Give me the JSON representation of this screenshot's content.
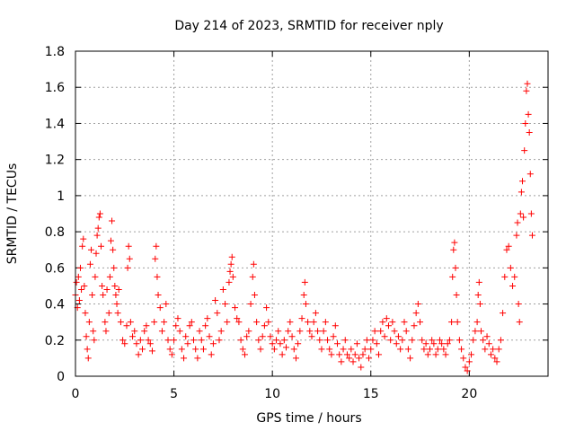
{
  "chart_data": {
    "type": "scatter",
    "title": "Day 214 of 2023, SRMTID for receiver nply",
    "xlabel": "GPS time / hours",
    "ylabel": "SRMTID / TECUs",
    "xlim": [
      0,
      24
    ],
    "ylim": [
      0,
      1.8
    ],
    "xticks": [
      0,
      5,
      10,
      15,
      20
    ],
    "xtick_labels": [
      "0",
      "5",
      "10",
      "15",
      "20"
    ],
    "yticks": [
      0,
      0.2,
      0.4,
      0.6,
      0.8,
      1,
      1.2,
      1.4,
      1.6,
      1.8
    ],
    "ytick_labels": [
      "0",
      "0.2",
      "0.4",
      "0.6",
      "0.8",
      "1",
      "1.2",
      "1.4",
      "1.6",
      "1.8"
    ],
    "grid": true,
    "marker": "+",
    "color": "#ff0000",
    "series": [
      {
        "name": "SRMTID",
        "points": [
          [
            0.0,
            0.45
          ],
          [
            0.05,
            0.52
          ],
          [
            0.1,
            0.38
          ],
          [
            0.15,
            0.55
          ],
          [
            0.2,
            0.42
          ],
          [
            0.25,
            0.6
          ],
          [
            0.3,
            0.48
          ],
          [
            0.35,
            0.72
          ],
          [
            0.4,
            0.76
          ],
          [
            0.45,
            0.5
          ],
          [
            0.5,
            0.35
          ],
          [
            0.55,
            0.22
          ],
          [
            0.6,
            0.15
          ],
          [
            0.65,
            0.1
          ],
          [
            0.7,
            0.3
          ],
          [
            0.75,
            0.62
          ],
          [
            0.8,
            0.7
          ],
          [
            0.85,
            0.45
          ],
          [
            0.9,
            0.25
          ],
          [
            0.95,
            0.2
          ],
          [
            1.0,
            0.55
          ],
          [
            1.05,
            0.68
          ],
          [
            1.1,
            0.78
          ],
          [
            1.15,
            0.82
          ],
          [
            1.2,
            0.88
          ],
          [
            1.25,
            0.9
          ],
          [
            1.3,
            0.72
          ],
          [
            1.35,
            0.5
          ],
          [
            1.4,
            0.45
          ],
          [
            1.5,
            0.3
          ],
          [
            1.55,
            0.25
          ],
          [
            1.6,
            0.48
          ],
          [
            1.7,
            0.35
          ],
          [
            1.75,
            0.55
          ],
          [
            1.8,
            0.75
          ],
          [
            1.85,
            0.86
          ],
          [
            1.9,
            0.7
          ],
          [
            1.95,
            0.6
          ],
          [
            2.0,
            0.5
          ],
          [
            2.05,
            0.45
          ],
          [
            2.1,
            0.4
          ],
          [
            2.15,
            0.35
          ],
          [
            2.2,
            0.48
          ],
          [
            2.3,
            0.3
          ],
          [
            2.4,
            0.2
          ],
          [
            2.5,
            0.18
          ],
          [
            2.6,
            0.28
          ],
          [
            2.65,
            0.6
          ],
          [
            2.7,
            0.72
          ],
          [
            2.75,
            0.65
          ],
          [
            2.8,
            0.3
          ],
          [
            2.9,
            0.22
          ],
          [
            3.0,
            0.25
          ],
          [
            3.1,
            0.18
          ],
          [
            3.2,
            0.12
          ],
          [
            3.3,
            0.2
          ],
          [
            3.4,
            0.15
          ],
          [
            3.5,
            0.25
          ],
          [
            3.6,
            0.28
          ],
          [
            3.7,
            0.2
          ],
          [
            3.8,
            0.18
          ],
          [
            3.9,
            0.14
          ],
          [
            4.0,
            0.3
          ],
          [
            4.05,
            0.65
          ],
          [
            4.1,
            0.72
          ],
          [
            4.15,
            0.55
          ],
          [
            4.2,
            0.45
          ],
          [
            4.3,
            0.38
          ],
          [
            4.4,
            0.25
          ],
          [
            4.5,
            0.3
          ],
          [
            4.6,
            0.4
          ],
          [
            4.7,
            0.2
          ],
          [
            4.8,
            0.15
          ],
          [
            4.9,
            0.12
          ],
          [
            5.0,
            0.2
          ],
          [
            5.1,
            0.28
          ],
          [
            5.2,
            0.32
          ],
          [
            5.3,
            0.25
          ],
          [
            5.4,
            0.15
          ],
          [
            5.5,
            0.1
          ],
          [
            5.6,
            0.22
          ],
          [
            5.7,
            0.18
          ],
          [
            5.8,
            0.28
          ],
          [
            5.9,
            0.3
          ],
          [
            6.0,
            0.2
          ],
          [
            6.1,
            0.15
          ],
          [
            6.2,
            0.1
          ],
          [
            6.3,
            0.25
          ],
          [
            6.4,
            0.2
          ],
          [
            6.5,
            0.15
          ],
          [
            6.6,
            0.28
          ],
          [
            6.7,
            0.32
          ],
          [
            6.8,
            0.22
          ],
          [
            6.9,
            0.12
          ],
          [
            7.0,
            0.18
          ],
          [
            7.1,
            0.42
          ],
          [
            7.2,
            0.35
          ],
          [
            7.3,
            0.2
          ],
          [
            7.4,
            0.25
          ],
          [
            7.5,
            0.48
          ],
          [
            7.6,
            0.4
          ],
          [
            7.7,
            0.3
          ],
          [
            7.8,
            0.52
          ],
          [
            7.85,
            0.58
          ],
          [
            7.9,
            0.62
          ],
          [
            7.95,
            0.66
          ],
          [
            8.0,
            0.55
          ],
          [
            8.1,
            0.38
          ],
          [
            8.2,
            0.32
          ],
          [
            8.3,
            0.3
          ],
          [
            8.4,
            0.2
          ],
          [
            8.5,
            0.15
          ],
          [
            8.6,
            0.12
          ],
          [
            8.7,
            0.22
          ],
          [
            8.8,
            0.25
          ],
          [
            8.9,
            0.4
          ],
          [
            9.0,
            0.55
          ],
          [
            9.05,
            0.62
          ],
          [
            9.1,
            0.45
          ],
          [
            9.2,
            0.3
          ],
          [
            9.3,
            0.2
          ],
          [
            9.4,
            0.15
          ],
          [
            9.5,
            0.22
          ],
          [
            9.6,
            0.28
          ],
          [
            9.7,
            0.38
          ],
          [
            9.8,
            0.3
          ],
          [
            9.9,
            0.22
          ],
          [
            10.0,
            0.18
          ],
          [
            10.1,
            0.15
          ],
          [
            10.2,
            0.2
          ],
          [
            10.3,
            0.25
          ],
          [
            10.4,
            0.18
          ],
          [
            10.5,
            0.12
          ],
          [
            10.6,
            0.2
          ],
          [
            10.7,
            0.16
          ],
          [
            10.8,
            0.25
          ],
          [
            10.9,
            0.3
          ],
          [
            11.0,
            0.22
          ],
          [
            11.1,
            0.15
          ],
          [
            11.2,
            0.1
          ],
          [
            11.3,
            0.18
          ],
          [
            11.4,
            0.25
          ],
          [
            11.5,
            0.32
          ],
          [
            11.6,
            0.45
          ],
          [
            11.65,
            0.52
          ],
          [
            11.7,
            0.4
          ],
          [
            11.8,
            0.3
          ],
          [
            11.9,
            0.25
          ],
          [
            12.0,
            0.22
          ],
          [
            12.1,
            0.3
          ],
          [
            12.2,
            0.35
          ],
          [
            12.3,
            0.25
          ],
          [
            12.4,
            0.2
          ],
          [
            12.5,
            0.15
          ],
          [
            12.6,
            0.25
          ],
          [
            12.7,
            0.3
          ],
          [
            12.8,
            0.2
          ],
          [
            12.9,
            0.15
          ],
          [
            13.0,
            0.12
          ],
          [
            13.1,
            0.22
          ],
          [
            13.2,
            0.28
          ],
          [
            13.3,
            0.18
          ],
          [
            13.4,
            0.12
          ],
          [
            13.5,
            0.08
          ],
          [
            13.6,
            0.15
          ],
          [
            13.7,
            0.2
          ],
          [
            13.8,
            0.12
          ],
          [
            13.9,
            0.1
          ],
          [
            14.0,
            0.15
          ],
          [
            14.1,
            0.08
          ],
          [
            14.2,
            0.12
          ],
          [
            14.3,
            0.18
          ],
          [
            14.4,
            0.1
          ],
          [
            14.5,
            0.05
          ],
          [
            14.6,
            0.12
          ],
          [
            14.7,
            0.15
          ],
          [
            14.8,
            0.2
          ],
          [
            14.9,
            0.1
          ],
          [
            15.0,
            0.15
          ],
          [
            15.1,
            0.2
          ],
          [
            15.2,
            0.25
          ],
          [
            15.3,
            0.18
          ],
          [
            15.4,
            0.12
          ],
          [
            15.5,
            0.25
          ],
          [
            15.6,
            0.3
          ],
          [
            15.7,
            0.22
          ],
          [
            15.8,
            0.32
          ],
          [
            15.9,
            0.28
          ],
          [
            16.0,
            0.2
          ],
          [
            16.1,
            0.3
          ],
          [
            16.2,
            0.25
          ],
          [
            16.3,
            0.18
          ],
          [
            16.4,
            0.22
          ],
          [
            16.5,
            0.15
          ],
          [
            16.6,
            0.2
          ],
          [
            16.7,
            0.3
          ],
          [
            16.8,
            0.25
          ],
          [
            16.9,
            0.15
          ],
          [
            17.0,
            0.1
          ],
          [
            17.1,
            0.2
          ],
          [
            17.2,
            0.28
          ],
          [
            17.3,
            0.35
          ],
          [
            17.4,
            0.4
          ],
          [
            17.5,
            0.3
          ],
          [
            17.6,
            0.2
          ],
          [
            17.7,
            0.15
          ],
          [
            17.8,
            0.18
          ],
          [
            17.9,
            0.12
          ],
          [
            18.0,
            0.15
          ],
          [
            18.1,
            0.2
          ],
          [
            18.2,
            0.18
          ],
          [
            18.3,
            0.12
          ],
          [
            18.4,
            0.15
          ],
          [
            18.5,
            0.2
          ],
          [
            18.6,
            0.18
          ],
          [
            18.7,
            0.15
          ],
          [
            18.8,
            0.12
          ],
          [
            18.9,
            0.18
          ],
          [
            19.0,
            0.2
          ],
          [
            19.1,
            0.3
          ],
          [
            19.15,
            0.55
          ],
          [
            19.2,
            0.7
          ],
          [
            19.25,
            0.74
          ],
          [
            19.3,
            0.6
          ],
          [
            19.35,
            0.45
          ],
          [
            19.4,
            0.3
          ],
          [
            19.5,
            0.2
          ],
          [
            19.6,
            0.15
          ],
          [
            19.7,
            0.1
          ],
          [
            19.8,
            0.05
          ],
          [
            19.9,
            0.03
          ],
          [
            20.0,
            0.08
          ],
          [
            20.1,
            0.12
          ],
          [
            20.2,
            0.2
          ],
          [
            20.3,
            0.25
          ],
          [
            20.4,
            0.3
          ],
          [
            20.45,
            0.45
          ],
          [
            20.5,
            0.52
          ],
          [
            20.55,
            0.4
          ],
          [
            20.6,
            0.25
          ],
          [
            20.7,
            0.2
          ],
          [
            20.8,
            0.15
          ],
          [
            20.9,
            0.22
          ],
          [
            21.0,
            0.18
          ],
          [
            21.1,
            0.12
          ],
          [
            21.2,
            0.15
          ],
          [
            21.3,
            0.1
          ],
          [
            21.4,
            0.08
          ],
          [
            21.5,
            0.15
          ],
          [
            21.6,
            0.2
          ],
          [
            21.7,
            0.35
          ],
          [
            21.8,
            0.55
          ],
          [
            21.9,
            0.7
          ],
          [
            22.0,
            0.72
          ],
          [
            22.1,
            0.6
          ],
          [
            22.2,
            0.5
          ],
          [
            22.3,
            0.55
          ],
          [
            22.4,
            0.78
          ],
          [
            22.45,
            0.85
          ],
          [
            22.5,
            0.4
          ],
          [
            22.55,
            0.3
          ],
          [
            22.6,
            0.9
          ],
          [
            22.65,
            1.02
          ],
          [
            22.7,
            1.08
          ],
          [
            22.75,
            0.88
          ],
          [
            22.8,
            1.25
          ],
          [
            22.85,
            1.4
          ],
          [
            22.9,
            1.58
          ],
          [
            22.95,
            1.62
          ],
          [
            23.0,
            1.45
          ],
          [
            23.05,
            1.35
          ],
          [
            23.1,
            1.12
          ],
          [
            23.15,
            0.9
          ],
          [
            23.2,
            0.78
          ]
        ]
      }
    ]
  }
}
